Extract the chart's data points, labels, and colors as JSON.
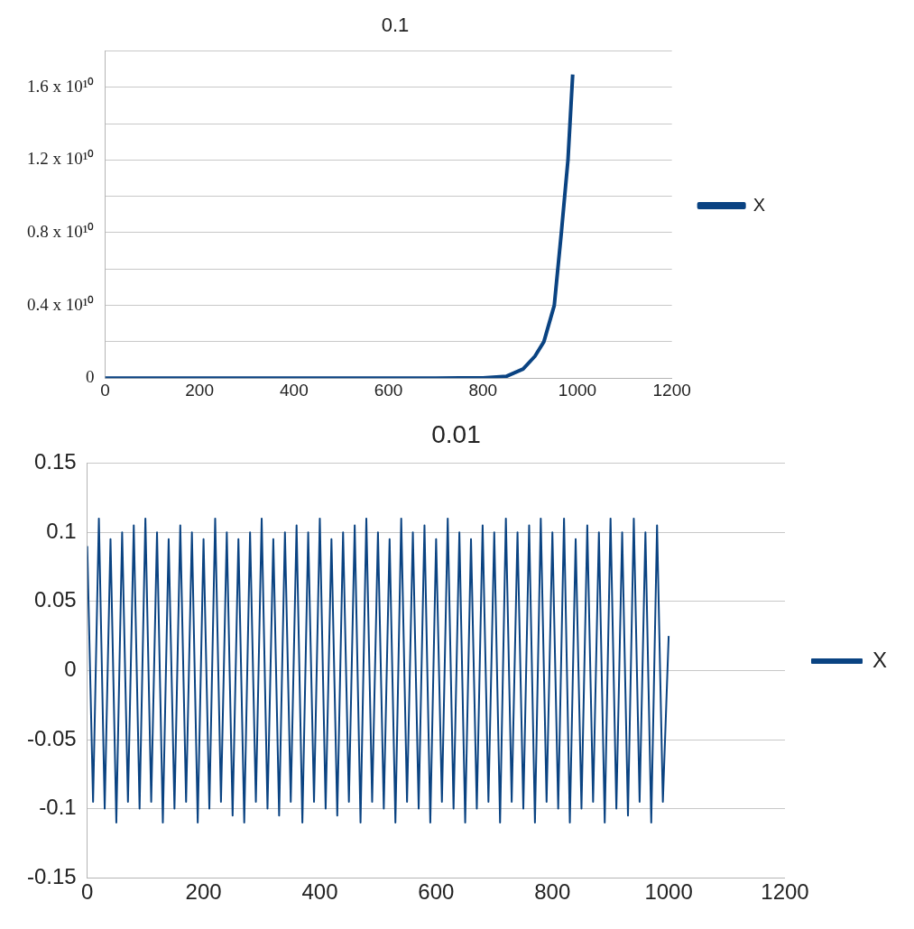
{
  "chart_data": [
    {
      "type": "line",
      "title": "0.1",
      "x": [
        0,
        100,
        200,
        300,
        400,
        500,
        600,
        700,
        800,
        850,
        885,
        910,
        929,
        951,
        966,
        980,
        990
      ],
      "xlim": [
        0,
        1200
      ],
      "xticks": [
        0,
        200,
        400,
        600,
        800,
        1000,
        1200
      ],
      "ylim": [
        0,
        18000000000
      ],
      "yticks": [
        0,
        {
          "value": 2000000000,
          "label": null
        },
        {
          "value": 4000000000,
          "label": "0.4 x 10¹⁰"
        },
        {
          "value": 6000000000,
          "label": null
        },
        {
          "value": 8000000000,
          "label": "0.8 x 10¹⁰"
        },
        {
          "value": 10000000000,
          "label": null
        },
        {
          "value": 12000000000,
          "label": "1.2 x 10¹⁰"
        },
        {
          "value": 14000000000,
          "label": null
        },
        {
          "value": 16000000000,
          "label": "1.6 x 10¹⁰"
        },
        {
          "value": 18000000000,
          "label": null
        }
      ],
      "grid": "y",
      "legend": "right",
      "marker": "none",
      "series": [
        {
          "name": "X",
          "color": "#0a4382",
          "values": [
            0,
            0,
            0,
            0,
            0,
            0,
            0,
            0,
            10000000,
            100000000,
            500000000,
            1200000000,
            2000000000,
            4000000000,
            8000000000,
            12000000000,
            16700000000
          ]
        }
      ]
    },
    {
      "type": "line",
      "title": "0.01",
      "x": [
        0,
        10,
        20,
        30,
        40,
        50,
        60,
        70,
        80,
        90,
        100,
        110,
        120,
        130,
        140,
        150,
        160,
        170,
        180,
        190,
        200,
        210,
        220,
        230,
        240,
        250,
        260,
        270,
        280,
        290,
        300,
        310,
        320,
        330,
        340,
        350,
        360,
        370,
        380,
        390,
        400,
        410,
        420,
        430,
        440,
        450,
        460,
        470,
        480,
        490,
        500,
        510,
        520,
        530,
        540,
        550,
        560,
        570,
        580,
        590,
        600,
        610,
        620,
        630,
        640,
        650,
        660,
        670,
        680,
        690,
        700,
        710,
        720,
        730,
        740,
        750,
        760,
        770,
        780,
        790,
        800,
        810,
        820,
        830,
        840,
        850,
        860,
        870,
        880,
        890,
        900,
        910,
        920,
        930,
        940,
        950,
        960,
        970,
        980,
        990,
        1000
      ],
      "xlim": [
        0,
        1200
      ],
      "xticks": [
        0,
        200,
        400,
        600,
        800,
        1000,
        1200
      ],
      "ylim": [
        -0.15,
        0.15
      ],
      "yticks": [
        -0.15,
        -0.1,
        -0.05,
        0,
        0.05,
        0.1,
        0.15
      ],
      "grid": "y",
      "legend": "right",
      "marker": "none",
      "series": [
        {
          "name": "X",
          "color": "#0a4382",
          "values": [
            0.09,
            -0.095,
            0.11,
            -0.1,
            0.095,
            -0.11,
            0.1,
            -0.095,
            0.105,
            -0.1,
            0.11,
            -0.095,
            0.1,
            -0.11,
            0.095,
            -0.1,
            0.105,
            -0.095,
            0.1,
            -0.11,
            0.095,
            -0.1,
            0.11,
            -0.095,
            0.1,
            -0.105,
            0.095,
            -0.11,
            0.1,
            -0.095,
            0.11,
            -0.1,
            0.095,
            -0.105,
            0.1,
            -0.095,
            0.105,
            -0.11,
            0.1,
            -0.095,
            0.11,
            -0.1,
            0.095,
            -0.105,
            0.1,
            -0.095,
            0.105,
            -0.11,
            0.11,
            -0.095,
            0.1,
            -0.1,
            0.095,
            -0.11,
            0.11,
            -0.095,
            0.1,
            -0.1,
            0.105,
            -0.11,
            0.095,
            -0.095,
            0.11,
            -0.1,
            0.1,
            -0.11,
            0.095,
            -0.1,
            0.105,
            -0.095,
            0.1,
            -0.11,
            0.11,
            -0.095,
            0.1,
            -0.1,
            0.105,
            -0.11,
            0.11,
            -0.095,
            0.1,
            -0.1,
            0.11,
            -0.11,
            0.095,
            -0.1,
            0.105,
            -0.095,
            0.1,
            -0.11,
            0.11,
            -0.1,
            0.1,
            -0.105,
            0.11,
            -0.095,
            0.1,
            -0.11,
            0.105,
            -0.095,
            0.025
          ]
        }
      ]
    }
  ]
}
